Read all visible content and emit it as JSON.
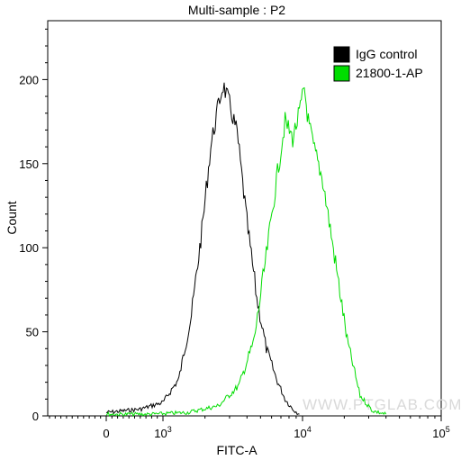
{
  "chart_data": {
    "type": "area",
    "title": "Multi-sample : P2",
    "xlabel": "FITC-A",
    "ylabel": "Count",
    "x_scale": "logicle",
    "ylim": [
      0,
      235
    ],
    "y_ticks": [
      0,
      50,
      100,
      150,
      200
    ],
    "x_ticks": [
      {
        "base": "0",
        "exp": ""
      },
      {
        "base": "10",
        "exp": "3"
      },
      {
        "base": "10",
        "exp": "4"
      },
      {
        "base": "10",
        "exp": "5"
      }
    ],
    "legend": {
      "placement": "top-right"
    },
    "series": [
      {
        "name": "IgG control",
        "color": "#000000",
        "points": [
          [
            0,
            2
          ],
          [
            300,
            3
          ],
          [
            600,
            4
          ],
          [
            1000,
            8
          ],
          [
            1300,
            22
          ],
          [
            1600,
            60
          ],
          [
            1900,
            110
          ],
          [
            2200,
            160
          ],
          [
            2500,
            185
          ],
          [
            2700,
            197
          ],
          [
            3000,
            185
          ],
          [
            3400,
            168
          ],
          [
            4000,
            115
          ],
          [
            4700,
            70
          ],
          [
            5500,
            40
          ],
          [
            6500,
            22
          ],
          [
            7500,
            10
          ],
          [
            8500,
            4
          ],
          [
            9500,
            1
          ]
        ]
      },
      {
        "name": "21800-1-AP",
        "color": "#00dd00",
        "points": [
          [
            0,
            1
          ],
          [
            800,
            1
          ],
          [
            1500,
            2
          ],
          [
            2500,
            6
          ],
          [
            3500,
            18
          ],
          [
            4500,
            45
          ],
          [
            5500,
            95
          ],
          [
            6500,
            140
          ],
          [
            7500,
            175
          ],
          [
            8500,
            165
          ],
          [
            9500,
            180
          ],
          [
            10300,
            195
          ],
          [
            11000,
            175
          ],
          [
            12000,
            160
          ],
          [
            14000,
            140
          ],
          [
            17000,
            95
          ],
          [
            21000,
            45
          ],
          [
            26000,
            12
          ],
          [
            32000,
            3
          ],
          [
            40000,
            1
          ]
        ]
      }
    ],
    "watermark": "WWW.PTGLAB.COM"
  }
}
